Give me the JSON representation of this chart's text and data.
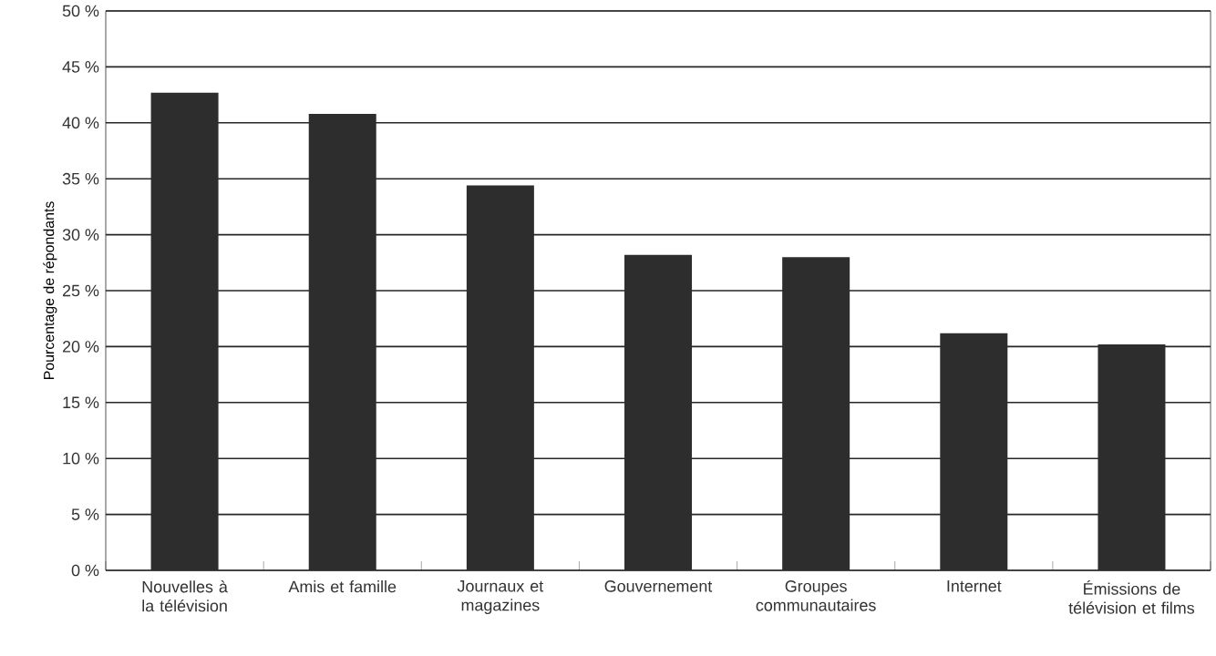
{
  "chart_data": {
    "type": "bar",
    "ylabel": "Pourcentage de répondants",
    "categories": [
      "Nouvelles à la télévision",
      "Amis et famille",
      "Journaux et magazines",
      "Gouvernement",
      "Groupes communautaires",
      "Internet",
      "Émissions de télévision et films"
    ],
    "values": [
      42.7,
      40.8,
      34.4,
      28.2,
      28.0,
      21.2,
      20.2
    ],
    "color": "#2d2d2d",
    "ylim": [
      0,
      50
    ],
    "yticks": [
      {
        "value": 0,
        "label": "0 %"
      },
      {
        "value": 5,
        "label": "5 %"
      },
      {
        "value": 10,
        "label": "10 %"
      },
      {
        "value": 15,
        "label": "15 %"
      },
      {
        "value": 20,
        "label": "20 %"
      },
      {
        "value": 25,
        "label": "25 %"
      },
      {
        "value": 30,
        "label": "30 %"
      },
      {
        "value": 35,
        "label": "35 %"
      },
      {
        "value": 40,
        "label": "40 %"
      },
      {
        "value": 45,
        "label": "45 %"
      },
      {
        "value": 50,
        "label": "50 %"
      }
    ],
    "grid": "y"
  }
}
